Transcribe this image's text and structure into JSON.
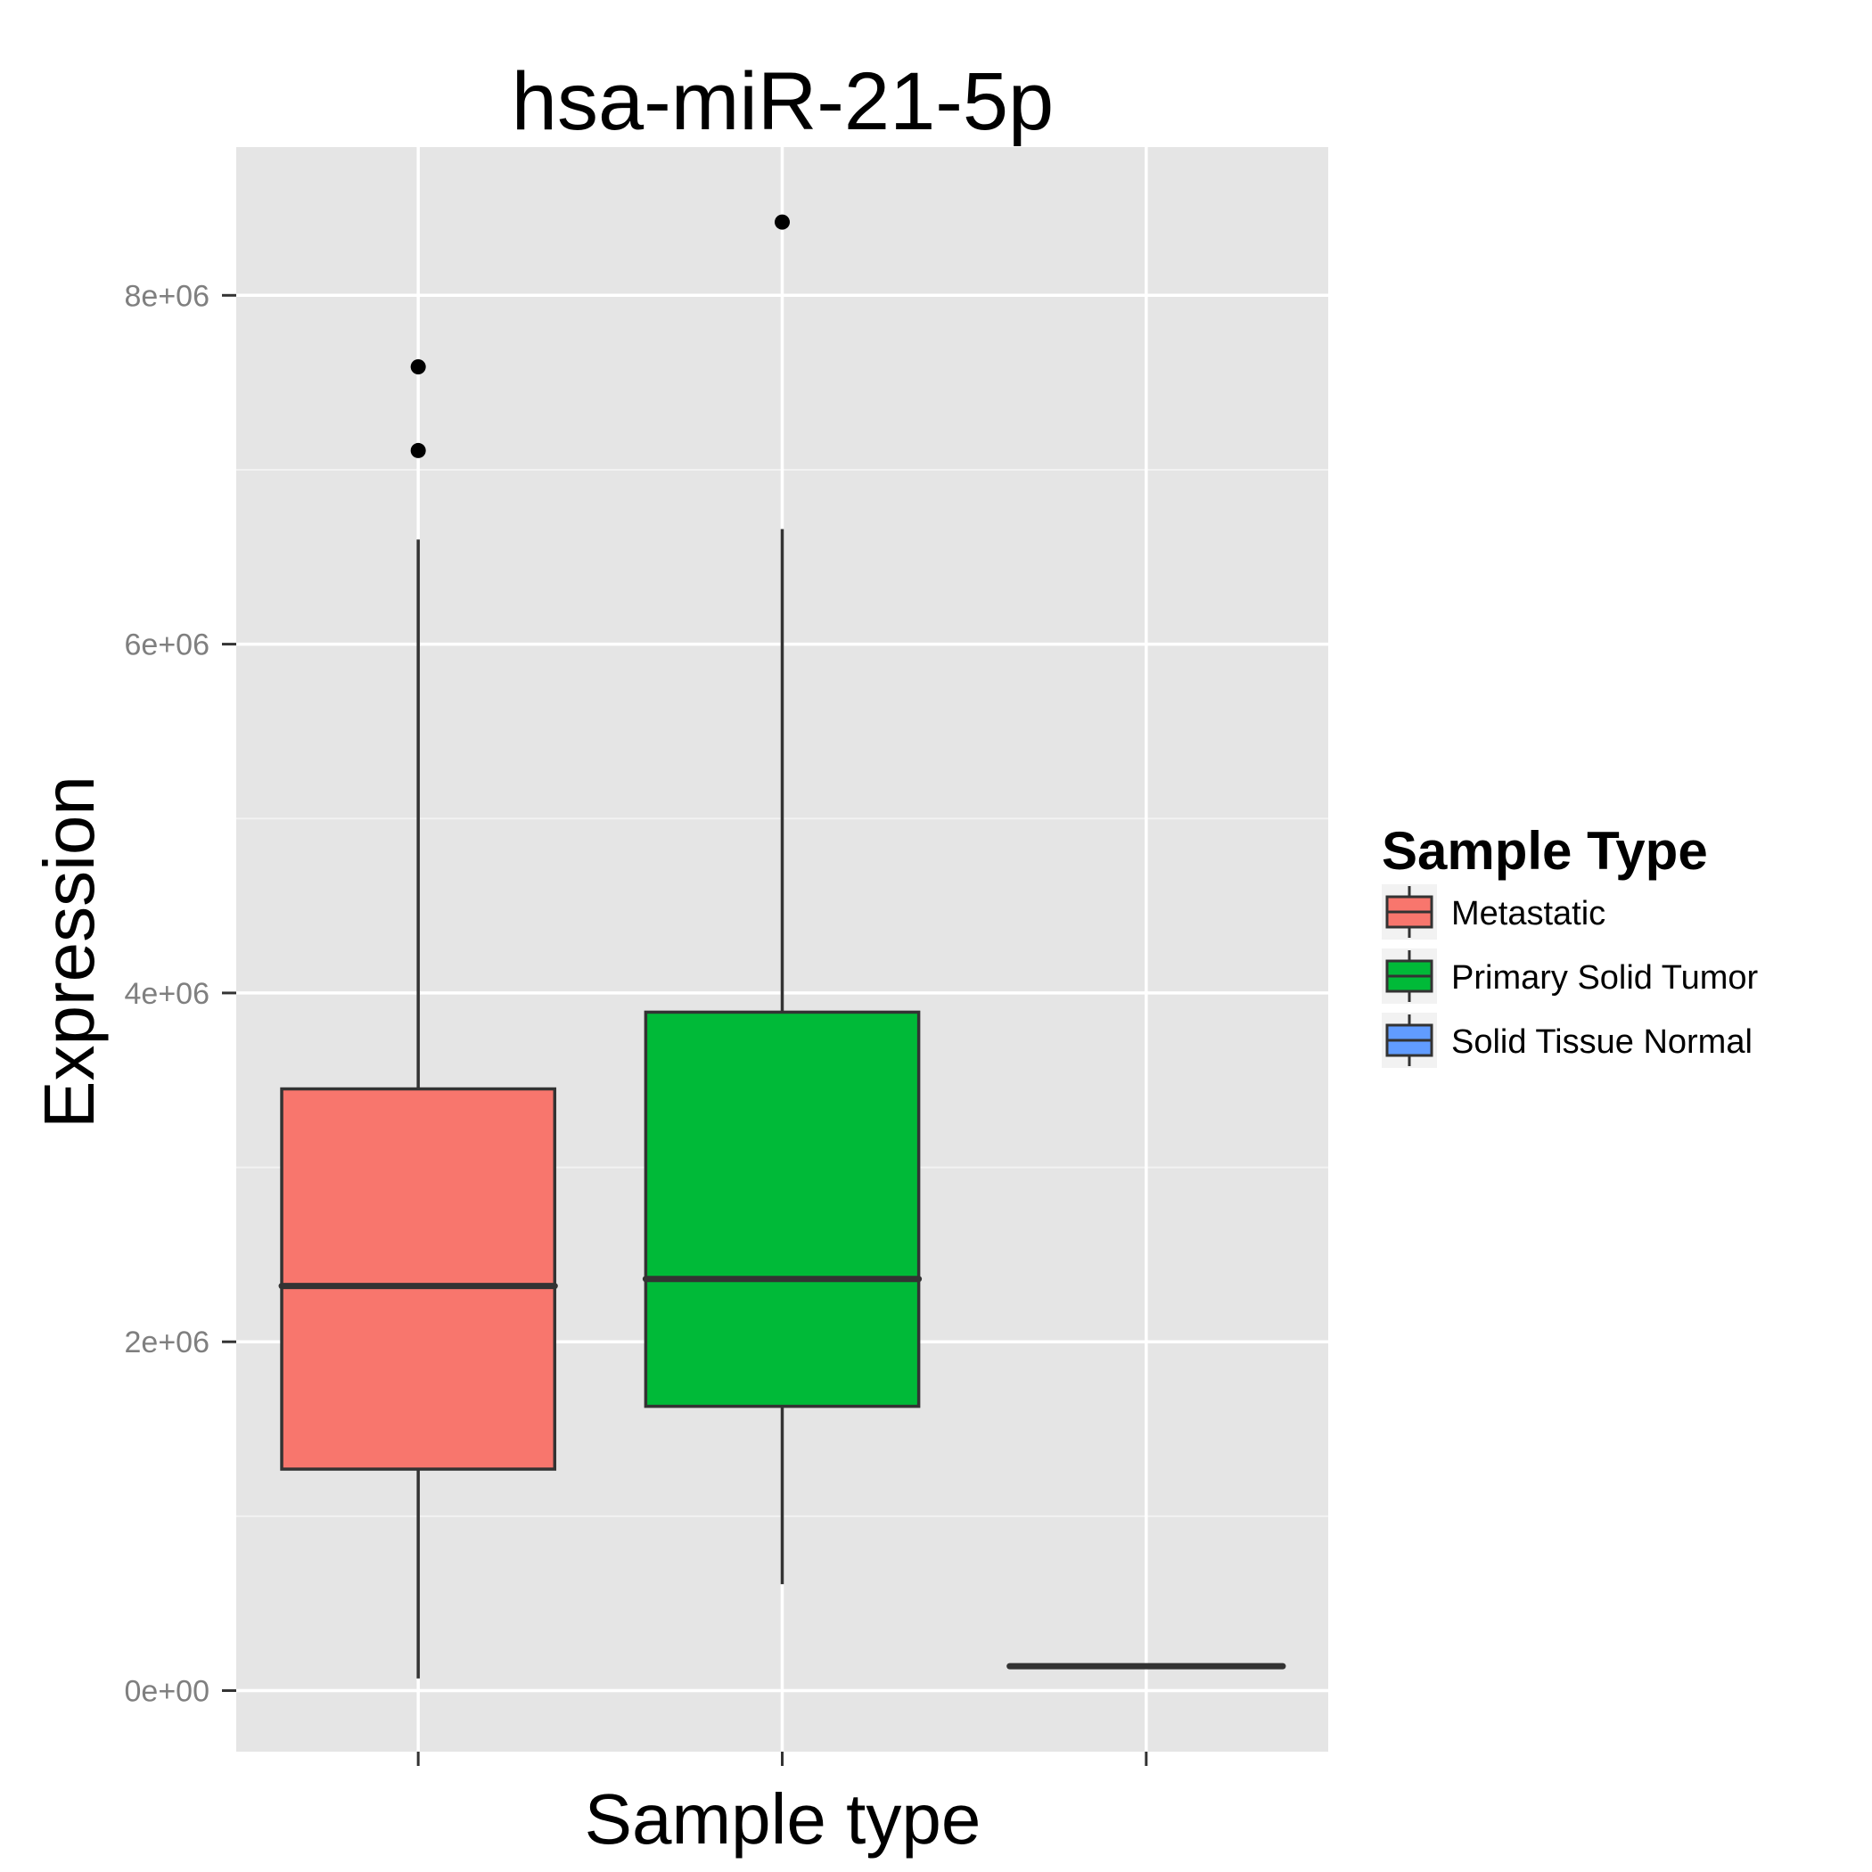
{
  "colors": {
    "panel_bg": "#e5e5e5",
    "grid": "#ffffff",
    "box_stroke": "#333333",
    "tick_text": "#7f7f7f"
  },
  "chart_data": {
    "type": "box",
    "title": "hsa-miR-21-5p",
    "xlabel": "Sample type",
    "ylabel": "Expression",
    "ylim": [
      -350000,
      8850000
    ],
    "yticks": [
      0,
      2000000,
      4000000,
      6000000,
      8000000
    ],
    "ytick_labels": [
      "0e+00",
      "2e+06",
      "4e+06",
      "6e+06",
      "8e+06"
    ],
    "x_tick_labels": [
      "",
      "",
      ""
    ],
    "grid": true,
    "legend": {
      "title": "Sample Type",
      "placement": "right"
    },
    "series": [
      {
        "name": "Metastatic",
        "color": "#f8766d",
        "whisker_low": 70000,
        "q1": 1270000,
        "median": 2320000,
        "q3": 3450000,
        "whisker_high": 6600000,
        "outliers": [
          7110000,
          7590000
        ]
      },
      {
        "name": "Primary Solid Tumor",
        "color": "#00ba38",
        "whisker_low": 610000,
        "q1": 1630000,
        "median": 2360000,
        "q3": 3890000,
        "whisker_high": 6660000,
        "outliers": [
          8420000
        ]
      },
      {
        "name": "Solid Tissue Normal",
        "color": "#619cff",
        "whisker_low": 140000,
        "q1": 140000,
        "median": 140000,
        "q3": 140000,
        "whisker_high": 140000,
        "outliers": []
      }
    ]
  }
}
